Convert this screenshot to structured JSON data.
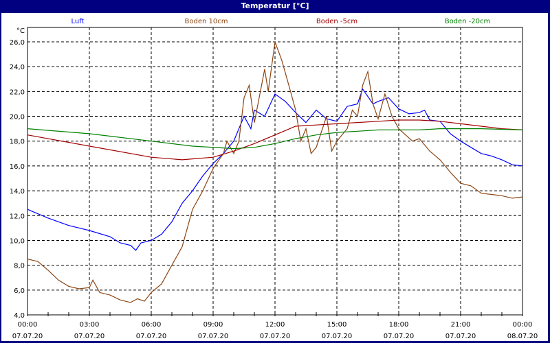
{
  "window": {
    "title": "Temperatur [°C]"
  },
  "chart_data": {
    "type": "line",
    "title": "Temperatur [°C]",
    "ylabel": "°C",
    "xlabel": "",
    "ylim": [
      4,
      26
    ],
    "xlim": [
      0,
      24
    ],
    "grid": true,
    "legend_placement": "top",
    "yticks": [
      "4,0",
      "6,0",
      "8,0",
      "10,0",
      "12,0",
      "14,0",
      "16,0",
      "18,0",
      "20,0",
      "22,0",
      "24,0",
      "26,0"
    ],
    "xticks": [
      {
        "time": "00:00",
        "date": "07.07.20"
      },
      {
        "time": "03:00",
        "date": "07.07.20"
      },
      {
        "time": "06:00",
        "date": "07.07.20"
      },
      {
        "time": "09:00",
        "date": "07.07.20"
      },
      {
        "time": "12:00",
        "date": "07.07.20"
      },
      {
        "time": "15:00",
        "date": "07.07.20"
      },
      {
        "time": "18:00",
        "date": "07.07.20"
      },
      {
        "time": "21:00",
        "date": "07.07.20"
      },
      {
        "time": "00:00",
        "date": "08.07.20"
      }
    ],
    "series": [
      {
        "name": "Luft",
        "color": "#0000ff",
        "x": [
          0,
          1,
          2,
          3,
          4,
          4.5,
          5,
          5.25,
          5.5,
          6,
          6.5,
          7,
          7.5,
          8,
          8.5,
          9,
          9.5,
          10,
          10.5,
          10.83,
          11,
          11.5,
          12,
          12.5,
          13,
          13.5,
          14,
          14.5,
          15,
          15.5,
          16,
          16.25,
          16.75,
          17,
          17.5,
          18,
          18.5,
          19,
          19.25,
          19.5,
          20,
          20.5,
          21,
          21.5,
          22,
          22.5,
          23,
          23.5,
          24
        ],
        "y": [
          12.5,
          11.8,
          11.2,
          10.8,
          10.3,
          9.8,
          9.6,
          9.2,
          9.8,
          10.0,
          10.5,
          11.5,
          13.0,
          14.0,
          15.2,
          16.2,
          17.0,
          18.0,
          20.0,
          19.0,
          20.5,
          20.0,
          21.8,
          21.2,
          20.3,
          19.5,
          20.5,
          19.8,
          19.6,
          20.8,
          21.0,
          22.2,
          21.0,
          21.2,
          21.5,
          20.6,
          20.2,
          20.3,
          20.5,
          19.7,
          19.6,
          18.6,
          18.0,
          17.5,
          17.0,
          16.8,
          16.5,
          16.1,
          16.0
        ]
      },
      {
        "name": "Boden 10cm",
        "color": "#8b4513",
        "x": [
          0,
          0.5,
          1,
          1.5,
          2,
          2.5,
          3,
          3.17,
          3.5,
          4,
          4.5,
          5,
          5.33,
          5.67,
          6,
          6.5,
          7,
          7.5,
          8,
          8.5,
          9,
          9.5,
          9.67,
          10,
          10.25,
          10.5,
          10.75,
          11,
          11.5,
          11.67,
          12,
          12.33,
          12.67,
          13,
          13.25,
          13.5,
          13.75,
          14,
          14.5,
          14.75,
          15,
          15.5,
          15.75,
          16,
          16.25,
          16.5,
          16.75,
          17,
          17.33,
          17.67,
          18,
          18.33,
          18.67,
          19,
          19.5,
          20,
          20.5,
          21,
          21.5,
          22,
          22.5,
          23,
          23.5,
          24
        ],
        "y": [
          8.5,
          8.3,
          7.6,
          6.8,
          6.3,
          6.1,
          6.2,
          6.8,
          5.8,
          5.6,
          5.2,
          5.0,
          5.3,
          5.1,
          5.8,
          6.5,
          8.0,
          9.5,
          12.5,
          14.0,
          15.8,
          17.0,
          18.0,
          17.0,
          18.0,
          21.5,
          22.5,
          19.5,
          23.8,
          22.0,
          26.0,
          24.5,
          22.5,
          20.5,
          18.0,
          19.0,
          17.0,
          17.5,
          20.0,
          17.2,
          18.0,
          19.0,
          20.5,
          20.0,
          22.5,
          23.6,
          21.0,
          19.8,
          21.8,
          20.0,
          19.0,
          18.5,
          18.0,
          18.2,
          17.2,
          16.5,
          15.5,
          14.6,
          14.4,
          13.8,
          13.7,
          13.6,
          13.4,
          13.5
        ]
      },
      {
        "name": "Boden -5cm",
        "color": "#a00000",
        "x": [
          0,
          3,
          6,
          7.5,
          9,
          10,
          11,
          12,
          13,
          14,
          15,
          16,
          17,
          18,
          19,
          20,
          21,
          22,
          23,
          24
        ],
        "y": [
          18.5,
          17.6,
          16.7,
          16.5,
          16.7,
          17.2,
          17.8,
          18.5,
          19.2,
          19.3,
          19.4,
          19.5,
          19.6,
          19.7,
          19.7,
          19.6,
          19.4,
          19.2,
          19.0,
          18.9
        ]
      },
      {
        "name": "Boden -20cm",
        "color": "#008000",
        "x": [
          0,
          3,
          6,
          8,
          10,
          11,
          12,
          13,
          14,
          15,
          16,
          17,
          18,
          19,
          20,
          21,
          22,
          24
        ],
        "y": [
          19.0,
          18.6,
          18.0,
          17.6,
          17.4,
          17.5,
          17.8,
          18.2,
          18.5,
          18.7,
          18.8,
          18.9,
          18.9,
          18.9,
          19.0,
          19.0,
          19.0,
          18.9
        ]
      }
    ]
  }
}
